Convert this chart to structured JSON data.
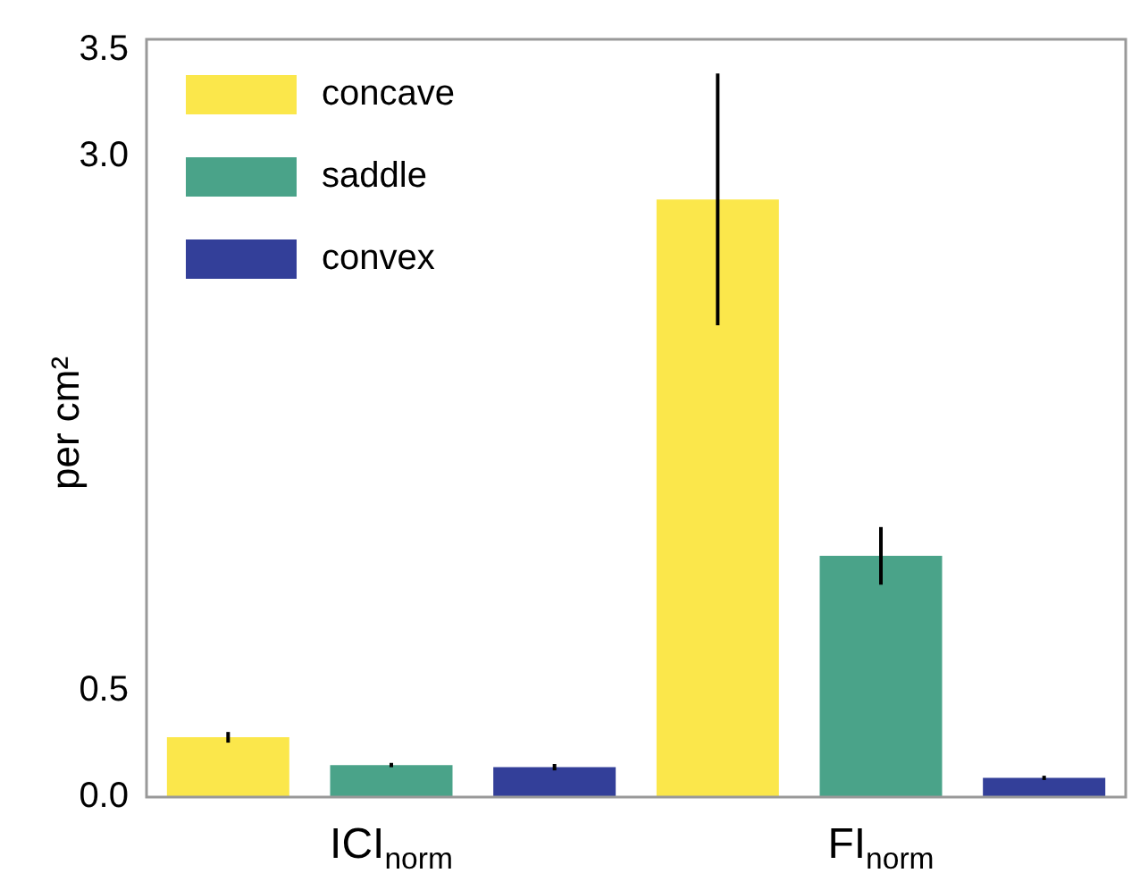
{
  "chart_data": {
    "type": "bar",
    "ylabel": "per cm²",
    "categories": [
      "ICI$_{norm}$",
      "FI$_{norm}$"
    ],
    "series": [
      {
        "name": "concave",
        "color": "#fbe74b",
        "values": [
          0.28,
          2.8
        ],
        "errors": [
          0.025,
          0.59
        ]
      },
      {
        "name": "saddle",
        "color": "#4aa389",
        "values": [
          0.15,
          1.13
        ],
        "errors": [
          0.01,
          0.135
        ]
      },
      {
        "name": "convex",
        "color": "#333f99",
        "values": [
          0.14,
          0.09
        ],
        "errors": [
          0.015,
          0.01
        ]
      }
    ],
    "ylim": [
      0,
      3.55
    ],
    "yticks": [
      {
        "value": 0,
        "label": "0.0"
      },
      {
        "value": 0.5,
        "label": "0.5"
      },
      {
        "value": 3,
        "label": "3.0"
      },
      {
        "value": 3.5,
        "label": "3.5"
      }
    ],
    "legend": "top left"
  }
}
